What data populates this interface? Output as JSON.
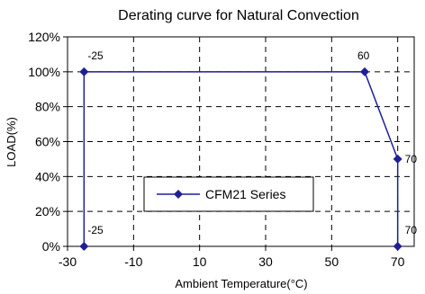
{
  "chart_data": {
    "type": "line",
    "title": "Derating curve for Natural Convection",
    "xlabel": "Ambient Temperature(°C)",
    "ylabel": "LOAD(%)",
    "xlim": [
      -30,
      75
    ],
    "ylim": [
      0,
      120
    ],
    "x_ticks": [
      -30,
      -10,
      10,
      30,
      50,
      70
    ],
    "x_tick_labels": [
      "-30",
      "-10",
      "10",
      "30",
      "50",
      "70"
    ],
    "y_ticks": [
      0,
      20,
      40,
      60,
      80,
      100,
      120
    ],
    "y_tick_labels": [
      "0%",
      "20%",
      "40%",
      "60%",
      "80%",
      "100%",
      "120%"
    ],
    "grid": true,
    "legend_position": "bottom-center",
    "series": [
      {
        "name": "CFM21 Series",
        "color": "#1f1f99",
        "marker": "diamond",
        "points": [
          {
            "x": -25,
            "y": 0
          },
          {
            "x": -25,
            "y": 100
          },
          {
            "x": 60,
            "y": 100
          },
          {
            "x": 70,
            "y": 50
          },
          {
            "x": 70,
            "y": 0
          }
        ]
      }
    ],
    "annotations": [
      {
        "text": "-25",
        "x": -25,
        "y": 100
      },
      {
        "text": "60",
        "x": 60,
        "y": 100
      },
      {
        "text": "70",
        "x": 70,
        "y": 50
      },
      {
        "text": "-25",
        "x": -25,
        "y": 0
      },
      {
        "text": "70",
        "x": 70,
        "y": 0
      }
    ]
  }
}
